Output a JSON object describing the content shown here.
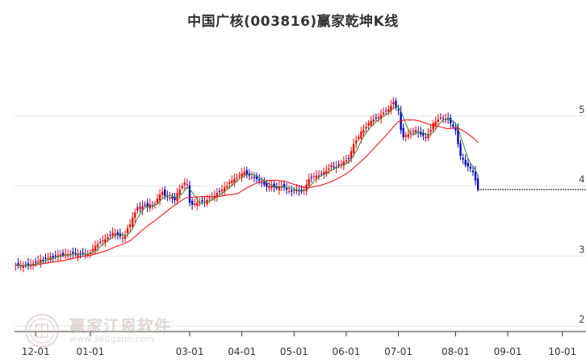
{
  "chart_data": {
    "type": "candlestick",
    "title": "中国广核(003816)赢家乾坤K线",
    "y_ticks": [
      "5",
      "4",
      "3",
      "2"
    ],
    "y_tick_values": [
      5,
      4,
      3,
      2
    ],
    "x_ticks": [
      "12-01",
      "01-01",
      "03-01",
      "04-01",
      "05-01",
      "06-01",
      "07-01",
      "08-01",
      "09-01",
      "10-01"
    ],
    "x_tick_indices": [
      8,
      30,
      70,
      91,
      112,
      133,
      154,
      177,
      198,
      220
    ],
    "total_slots": 230,
    "grid": true,
    "colors": {
      "up": "#ff0000",
      "down": "#0000cc",
      "neutral": "#800080",
      "ma_short": "#2e8b2e",
      "ma_long": "#ff0000",
      "grid": "#e6e6e6"
    },
    "close_values": [
      2.87,
      2.86,
      2.86,
      2.86,
      2.87,
      2.87,
      2.88,
      2.89,
      2.91,
      2.93,
      2.95,
      2.94,
      2.96,
      2.97,
      2.99,
      2.98,
      3.0,
      3.01,
      3.02,
      3.01,
      3.03,
      3.02,
      3.03,
      3.04,
      3.02,
      3.03,
      3.02,
      3.04,
      3.03,
      3.02,
      3.05,
      3.1,
      3.14,
      3.17,
      3.2,
      3.22,
      3.24,
      3.27,
      3.3,
      3.33,
      3.32,
      3.3,
      3.28,
      3.26,
      3.3,
      3.4,
      3.45,
      3.55,
      3.62,
      3.7,
      3.68,
      3.72,
      3.73,
      3.7,
      3.74,
      3.72,
      3.75,
      3.82,
      3.88,
      3.92,
      3.86,
      3.85,
      3.84,
      3.82,
      3.8,
      3.9,
      3.95,
      4.0,
      4.05,
      4.02,
      3.76,
      3.73,
      3.75,
      3.76,
      3.77,
      3.78,
      3.77,
      3.8,
      3.83,
      3.85,
      3.86,
      3.9,
      3.92,
      3.95,
      3.98,
      4.0,
      4.05,
      4.08,
      4.1,
      4.12,
      4.15,
      4.18,
      4.2,
      4.17,
      4.15,
      4.13,
      4.12,
      4.1,
      4.08,
      4.05,
      4.02,
      3.99,
      4.0,
      4.01,
      3.98,
      3.97,
      3.99,
      4.0,
      3.98,
      3.95,
      3.93,
      3.92,
      3.94,
      3.96,
      3.93,
      3.92,
      3.95,
      4.02,
      4.1,
      4.12,
      4.14,
      4.15,
      4.15,
      4.18,
      4.2,
      4.22,
      4.25,
      4.3,
      4.27,
      4.28,
      4.3,
      4.32,
      4.35,
      4.37,
      4.39,
      4.5,
      4.6,
      4.65,
      4.7,
      4.78,
      4.8,
      4.85,
      4.9,
      4.93,
      4.95,
      4.97,
      4.99,
      5.02,
      5.05,
      5.08,
      5.1,
      5.15,
      5.2,
      5.12,
      5.08,
      4.8,
      4.7,
      4.73,
      4.74,
      4.75,
      4.78,
      4.8,
      4.76,
      4.74,
      4.72,
      4.7,
      4.75,
      4.8,
      4.9,
      4.92,
      4.95,
      4.98,
      4.97,
      4.96,
      4.95,
      4.9,
      4.85,
      4.8,
      4.6,
      4.43,
      4.38,
      4.3,
      4.28,
      4.25,
      4.2,
      4.08,
      3.95
    ]
  }
}
